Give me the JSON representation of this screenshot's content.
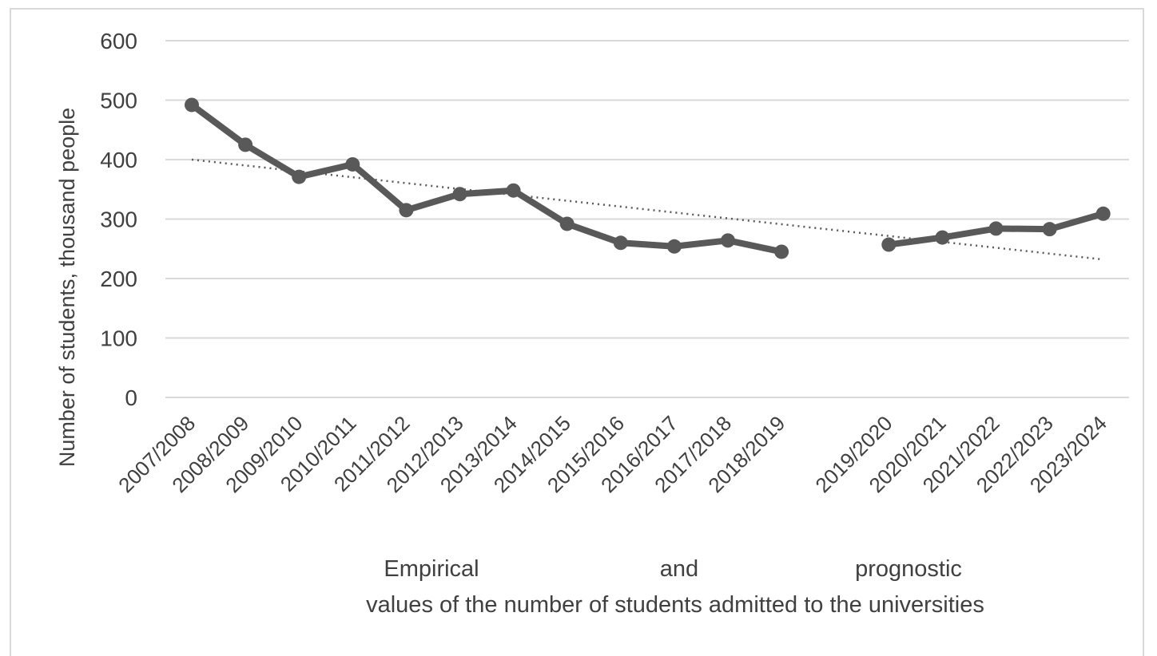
{
  "chart_data": {
    "type": "line",
    "categories": [
      "2007/2008",
      "2008/2009",
      "2009/2010",
      "2010/2011",
      "2011/2012",
      "2012/2013",
      "2013/2014",
      "2014/2015",
      "2015/2016",
      "2016/2017",
      "2017/2018",
      "2018/2019",
      "",
      "2019/2020",
      "2020/2021",
      "2021/2022",
      "2022/2023",
      "2023/2024"
    ],
    "series": [
      {
        "name": "",
        "role": "empirical",
        "values": [
          492,
          425,
          371,
          392,
          315,
          342,
          348,
          292,
          260,
          254,
          264,
          245,
          null,
          null,
          null,
          null,
          null,
          null
        ]
      },
      {
        "name": "",
        "role": "prognostic",
        "values": [
          null,
          null,
          null,
          null,
          null,
          null,
          null,
          null,
          null,
          null,
          null,
          null,
          null,
          257,
          269,
          284,
          283,
          309
        ]
      }
    ],
    "trendline": {
      "style": "dotted",
      "type": "linear",
      "start": 400,
      "end": 232
    },
    "ylabel": "Number of students, thousand people",
    "xlabel_parts": [
      "Empirical",
      "and",
      "prognostic"
    ],
    "xlabel_line2": "values of the number of students admitted to the universities",
    "ylim": [
      0,
      600
    ],
    "yticks": [
      "0",
      "100",
      "200",
      "300",
      "400",
      "500",
      "600"
    ],
    "grid": true,
    "legend": "none",
    "colors": {
      "series": "#595959",
      "grid": "#d9d9d9",
      "text": "#404040"
    }
  }
}
